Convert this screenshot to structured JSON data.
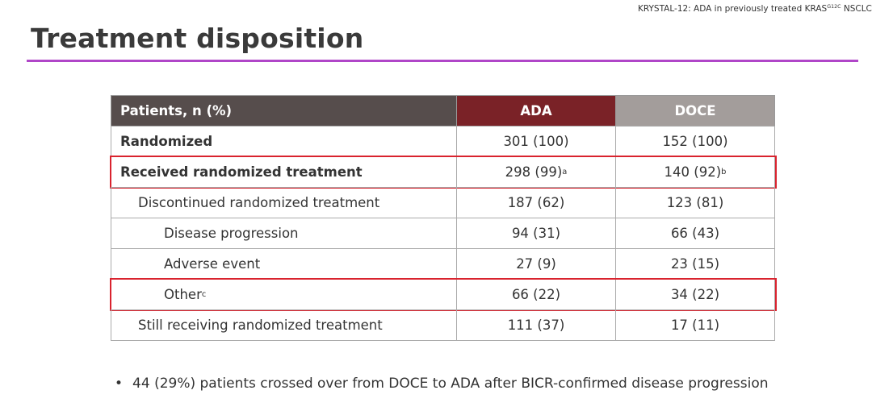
{
  "header": {
    "source": "KRYSTAL-12: ADA in previously treated KRAS",
    "source_sup": "G12C",
    "source_end": "NSCLC",
    "title": "Treatment disposition"
  },
  "table": {
    "columns": [
      "Patients, n (%)",
      "ADA",
      "DOCE"
    ],
    "rows": [
      {
        "label": "Randomized",
        "level": 0,
        "cells": [
          {
            "text": "301 (100)"
          },
          {
            "text": "152 (100)"
          }
        ]
      },
      {
        "label": "Received randomized treatment",
        "level": 0,
        "highlight": true,
        "cells": [
          {
            "text": "298 (99)",
            "sup": "a"
          },
          {
            "text": "140 (92)",
            "sup": "b"
          }
        ]
      },
      {
        "label": "Discontinued randomized treatment",
        "level": 1,
        "cells": [
          {
            "text": "187 (62)"
          },
          {
            "text": "123 (81)"
          }
        ]
      },
      {
        "label": "Disease progression",
        "level": 2,
        "cells": [
          {
            "text": "94 (31)"
          },
          {
            "text": "66 (43)"
          }
        ]
      },
      {
        "label": "Adverse event",
        "level": 2,
        "cells": [
          {
            "text": "27 (9)"
          },
          {
            "text": "23 (15)"
          }
        ]
      },
      {
        "label": "Other",
        "label_sup": "c",
        "level": 2,
        "highlight": true,
        "cells": [
          {
            "text": "66 (22)"
          },
          {
            "text": "34 (22)"
          }
        ]
      },
      {
        "label": "Still receiving randomized treatment",
        "level": 1,
        "cells": [
          {
            "text": "111 (37)"
          },
          {
            "text": "17 (11)"
          }
        ]
      }
    ]
  },
  "notes": [
    "44 (29%) patients crossed over from DOCE to ADA after BICR-confirmed disease progression"
  ]
}
